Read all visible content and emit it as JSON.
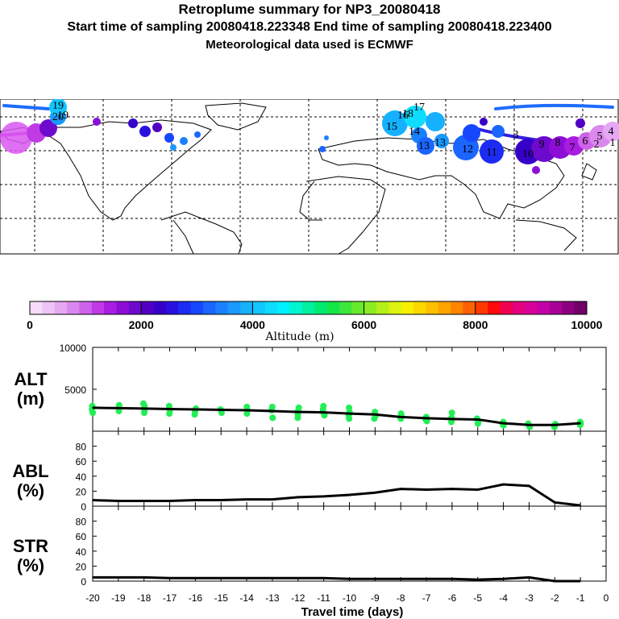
{
  "header": {
    "title": "Retroplume summary for NP3_20080418",
    "sampling_line": "Start time of sampling 20080418.223348     End time of sampling 20080418.223400",
    "met_line": "Meteorological data used is ECMWF"
  },
  "map": {
    "track_labels": [
      "19",
      "20",
      "19",
      "18",
      "17",
      "16",
      "15",
      "14",
      "13",
      "13",
      "12",
      "11",
      "10",
      "9",
      "8",
      "7",
      "6",
      "5",
      "4",
      "3",
      "2",
      "1"
    ],
    "colors": {
      "ocean": "#ffffff",
      "coast": "#000000",
      "grid": "#000000",
      "track": "#1e6cff",
      "low": "#d957f2",
      "mid": "#2f3cff",
      "high": "#1aa6ff"
    }
  },
  "colorbar": {
    "ticks": [
      "0",
      "2000",
      "4000",
      "6000",
      "8000",
      "10000"
    ],
    "tick_values": [
      0,
      2000,
      4000,
      6000,
      8000,
      10000
    ],
    "label": "Altitude (m)",
    "colors": [
      "#f6dcf9",
      "#eec3f5",
      "#e6a8f2",
      "#db88ee",
      "#cf62ea",
      "#c03be5",
      "#a81de0",
      "#8c0ed6",
      "#6e0acd",
      "#5100c3",
      "#3600c8",
      "#2a10e0",
      "#1d2cf2",
      "#1647ff",
      "#1a66ff",
      "#1a80ff",
      "#1a99ff",
      "#16b0ff",
      "#12c6ff",
      "#0fdcff",
      "#00f0ff",
      "#00f5d0",
      "#00f0a0",
      "#00ea70",
      "#14e648",
      "#3ce63a",
      "#66ea2e",
      "#8cee22",
      "#b4f01a",
      "#dcf212",
      "#f8f000",
      "#fcd800",
      "#ffbf00",
      "#ffa300",
      "#ff8400",
      "#ff6200",
      "#ff3a00",
      "#ff0a0a",
      "#f00050",
      "#e4007c",
      "#d6009a",
      "#c400a8",
      "#a80096",
      "#8c0080",
      "#700068"
    ]
  },
  "chart_data": {
    "type": "line",
    "x_label": "Travel time (days)",
    "x": [
      -20,
      -19,
      -18,
      -17,
      -16,
      -15,
      -14,
      -13,
      -12,
      -11,
      -10,
      -9,
      -8,
      -7,
      -6,
      -5,
      -4,
      -3,
      -2,
      -1
    ],
    "xlim": [
      -20,
      0
    ],
    "x_tick_labels": [
      "-20",
      "-19",
      "-18",
      "-17",
      "-16",
      "-15",
      "-14",
      "-13",
      "-12",
      "-11",
      "-10",
      "-9",
      "-8",
      "-7",
      "-6",
      "-5",
      "-4",
      "-3",
      "-2",
      "-1",
      "0"
    ],
    "panels": [
      {
        "name": "ALT",
        "ylabel_line1": "ALT",
        "ylabel_line2": "(m)",
        "ylim": [
          0,
          10000
        ],
        "y_tick_labels": [
          "10000",
          "5000"
        ],
        "y_tick_values": [
          10000,
          5000
        ],
        "series": [
          {
            "name": "mean altitude",
            "values": [
              2800,
              2750,
              2700,
              2650,
              2600,
              2550,
              2500,
              2400,
              2300,
              2250,
              2100,
              2000,
              1700,
              1550,
              1450,
              1400,
              950,
              750,
              750,
              950
            ]
          }
        ],
        "scatter_color": "#22ee55",
        "scatter_y": [
          [
            2600,
            3000,
            2200
          ],
          [
            2800,
            2400,
            3100
          ],
          [
            3000,
            2500,
            3300,
            2200
          ],
          [
            2500,
            3000,
            2100
          ],
          [
            2700,
            2300,
            2000
          ],
          [
            2600,
            2200
          ],
          [
            2500,
            2900,
            2100
          ],
          [
            2500,
            1600,
            2900
          ],
          [
            2400,
            2800,
            2000,
            1600
          ],
          [
            2600,
            1900,
            2300,
            3000
          ],
          [
            1900,
            2300,
            1500,
            2800
          ],
          [
            2300,
            1900,
            1500
          ],
          [
            1800,
            2100,
            1500
          ],
          [
            1700,
            1400,
            1200
          ],
          [
            1600,
            1300,
            1100,
            2200
          ],
          [
            1500,
            1200,
            900
          ],
          [
            800,
            1100,
            700
          ],
          [
            700,
            900,
            500
          ],
          [
            700,
            500,
            850
          ],
          [
            900,
            1100,
            750
          ]
        ]
      },
      {
        "name": "ABL",
        "ylabel_line1": "ABL",
        "ylabel_line2": "(%)",
        "ylim": [
          0,
          100
        ],
        "y_tick_labels": [
          "80",
          "60",
          "40",
          "20",
          "0"
        ],
        "y_tick_values": [
          80,
          60,
          40,
          20,
          0
        ],
        "series": [
          {
            "name": "ABL fraction",
            "values": [
              8,
              7,
              7,
              7,
              8,
              8,
              9,
              9,
              12,
              13,
              15,
              18,
              23,
              22,
              23,
              22,
              29,
              27,
              5,
              1
            ]
          }
        ]
      },
      {
        "name": "STR",
        "ylabel_line1": "STR",
        "ylabel_line2": "(%)",
        "ylim": [
          0,
          100
        ],
        "y_tick_labels": [
          "80",
          "60",
          "40",
          "20",
          "0"
        ],
        "y_tick_values": [
          80,
          60,
          40,
          20,
          0
        ],
        "series": [
          {
            "name": "STR fraction",
            "values": [
              5,
              5,
              5,
              4,
              4,
              4,
              4,
              4,
              4,
              4,
              3,
              3,
              3,
              3,
              3,
              2,
              3,
              5,
              0,
              0
            ]
          }
        ]
      }
    ]
  }
}
